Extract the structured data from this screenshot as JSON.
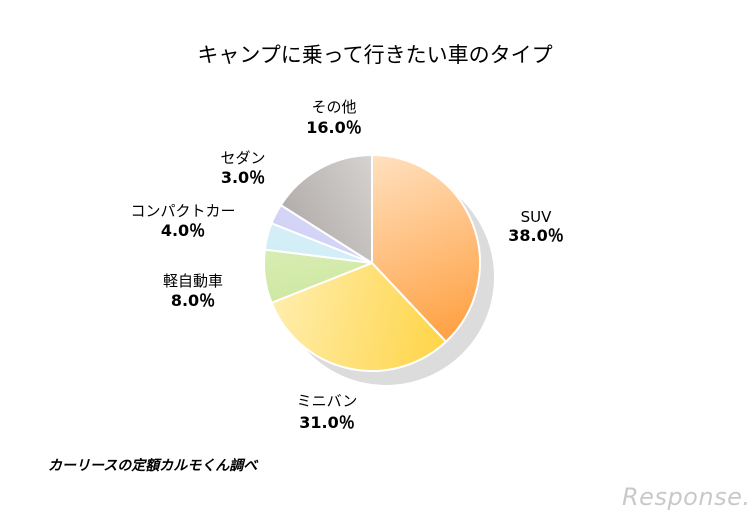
{
  "chart_data": {
    "type": "pie",
    "title": "キャンプに乗って行きたい車のタイプ",
    "slices": [
      {
        "label": "SUV",
        "value": 38.0,
        "display": "38.0％",
        "color_from": "#ffe3c4",
        "color_to": "#ff9e3d"
      },
      {
        "label": "ミニバン",
        "value": 31.0,
        "display": "31.0％",
        "color_from": "#ffd23d",
        "color_to": "#fff0b8"
      },
      {
        "label": "軽自動車",
        "value": 8.0,
        "display": "8.0％",
        "color_from": "#bfe08a",
        "color_to": "#e8f5cc"
      },
      {
        "label": "コンパクトカー",
        "value": 4.0,
        "display": "4.0％",
        "color_from": "#bfe6f2",
        "color_to": "#e6f6fb"
      },
      {
        "label": "セダン",
        "value": 3.0,
        "display": "3.0％",
        "color_from": "#c4c4f3",
        "color_to": "#e3e3fb"
      },
      {
        "label": "その他",
        "value": 16.0,
        "display": "16.0％",
        "color_from": "#a09a97",
        "color_to": "#e8e6e4"
      }
    ]
  },
  "source": "カーリースの定額カルモくん調べ",
  "watermark": "Response."
}
